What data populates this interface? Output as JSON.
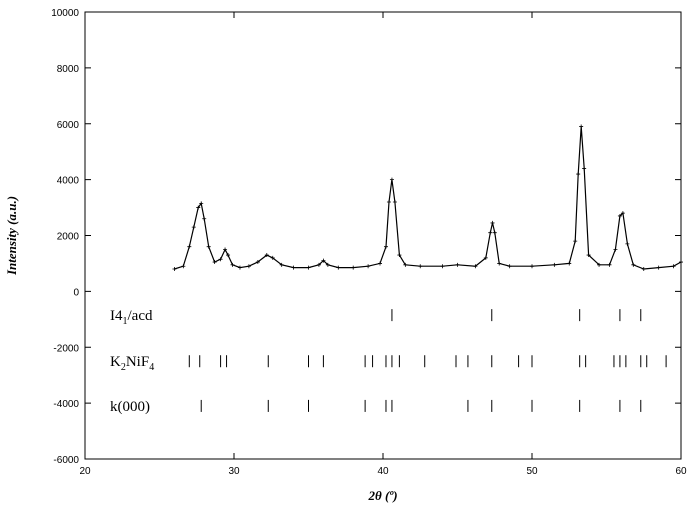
{
  "chart_data": {
    "type": "line",
    "xlabel": "2θ (º)",
    "ylabel": "Intensity (a.u.)",
    "xlim": [
      20,
      60
    ],
    "ylim": [
      -6000,
      10000
    ],
    "x_ticks": [
      20,
      30,
      40,
      50,
      60
    ],
    "y_ticks": [
      -6000,
      -4000,
      -2000,
      0,
      2000,
      4000,
      6000,
      8000,
      10000
    ],
    "grid": false,
    "series": [
      {
        "name": "",
        "style": "observed (+) and calculated (line) profile",
        "x": [
          26.0,
          26.6,
          27.0,
          27.3,
          27.6,
          27.8,
          28.0,
          28.3,
          28.7,
          29.1,
          29.4,
          29.6,
          29.9,
          30.4,
          31.0,
          31.6,
          32.2,
          32.6,
          33.2,
          34.0,
          35.0,
          35.7,
          36.0,
          36.3,
          37.0,
          38.0,
          39.0,
          39.8,
          40.2,
          40.4,
          40.6,
          40.8,
          41.1,
          41.5,
          42.5,
          44.0,
          45.0,
          46.2,
          46.9,
          47.2,
          47.35,
          47.5,
          47.8,
          48.5,
          50.0,
          51.5,
          52.5,
          52.9,
          53.1,
          53.3,
          53.5,
          53.8,
          54.5,
          55.2,
          55.6,
          55.9,
          56.1,
          56.4,
          56.8,
          57.5,
          58.5,
          59.5,
          60.0
        ],
        "y": [
          800,
          900,
          1600,
          2300,
          3000,
          3150,
          2600,
          1600,
          1050,
          1150,
          1500,
          1300,
          950,
          850,
          900,
          1050,
          1300,
          1200,
          950,
          850,
          850,
          950,
          1100,
          950,
          850,
          850,
          900,
          1000,
          1600,
          3200,
          4000,
          3200,
          1300,
          950,
          900,
          900,
          950,
          900,
          1200,
          2100,
          2450,
          2100,
          1000,
          900,
          900,
          950,
          1000,
          1800,
          4200,
          5900,
          4400,
          1300,
          950,
          950,
          1500,
          2700,
          2800,
          1700,
          950,
          800,
          850,
          900,
          1050
        ]
      }
    ],
    "reflection_sets": [
      {
        "label_main": "I4",
        "label_sub": "1",
        "label_tail": "/acd",
        "y": -850,
        "positions": [
          40.6,
          47.3,
          53.2,
          55.9,
          57.3
        ]
      },
      {
        "label_pieces": [
          {
            "t": "K",
            "sub": false
          },
          {
            "t": "2",
            "sub": true
          },
          {
            "t": "NiF",
            "sub": false
          },
          {
            "t": "4",
            "sub": true
          }
        ],
        "y": -2500,
        "positions": [
          27.0,
          27.7,
          29.1,
          29.5,
          32.3,
          35.0,
          36.0,
          38.8,
          39.3,
          40.2,
          40.6,
          41.1,
          42.8,
          44.9,
          45.7,
          47.3,
          49.1,
          50.0,
          53.2,
          53.6,
          55.5,
          55.9,
          56.3,
          57.3,
          57.7,
          59.0
        ]
      },
      {
        "label": "k(000)",
        "y": -4100,
        "positions": [
          27.8,
          32.3,
          35.0,
          38.8,
          40.2,
          40.6,
          45.7,
          47.3,
          50.0,
          53.2,
          55.9,
          57.3
        ]
      }
    ]
  }
}
